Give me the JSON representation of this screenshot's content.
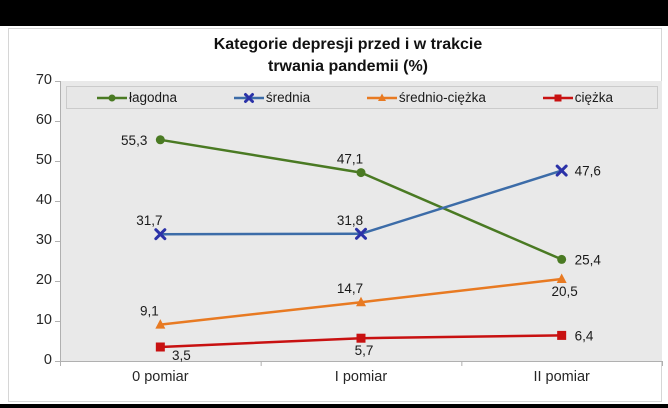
{
  "title": {
    "line1": "Kategorie depresji przed i w trakcie",
    "line2": "trwania pandemii (%)"
  },
  "chart_data": {
    "type": "line",
    "title": "Kategorie depresji przed i w trakcie trwania pandemii (%)",
    "categories": [
      "0 pomiar",
      "I pomiar",
      "II pomiar"
    ],
    "series": [
      {
        "name": "łagodna",
        "values": [
          55.3,
          47.1,
          25.4
        ],
        "point_labels": [
          "55,3",
          "47,1",
          "25,4"
        ],
        "label_placement": [
          "left",
          "above",
          "right"
        ],
        "color": "#4a7a23",
        "marker": "circle",
        "marker_color": "#4a7a23"
      },
      {
        "name": "średnia",
        "values": [
          31.7,
          31.8,
          47.6
        ],
        "point_labels": [
          "31,7",
          "31,8",
          "47,6"
        ],
        "label_placement": [
          "above",
          "above",
          "right"
        ],
        "color": "#3c6ca8",
        "marker": "x",
        "marker_color": "#2b32a8"
      },
      {
        "name": "średnio-ciężka",
        "values": [
          9.1,
          14.7,
          20.5
        ],
        "point_labels": [
          "9,1",
          "14,7",
          "20,5"
        ],
        "label_placement": [
          "above",
          "above",
          "below"
        ],
        "color": "#e87a22",
        "marker": "triangle",
        "marker_color": "#e87a22"
      },
      {
        "name": "ciężka",
        "values": [
          3.5,
          5.7,
          6.4
        ],
        "point_labels": [
          "3,5",
          "5,7",
          "6,4"
        ],
        "label_placement": [
          "below-right",
          "below",
          "right"
        ],
        "color": "#c81111",
        "marker": "square",
        "marker_color": "#c81111"
      }
    ],
    "y_ticks": [
      0,
      10,
      20,
      30,
      40,
      50,
      60,
      70
    ],
    "ylim": [
      0,
      70
    ],
    "grid": false,
    "legend_position": "top",
    "plot_bg": "#e9e9e9",
    "axis_color": "#b0b0b0",
    "text_color": "#262626",
    "value_label_color": "#1a1a1a"
  }
}
